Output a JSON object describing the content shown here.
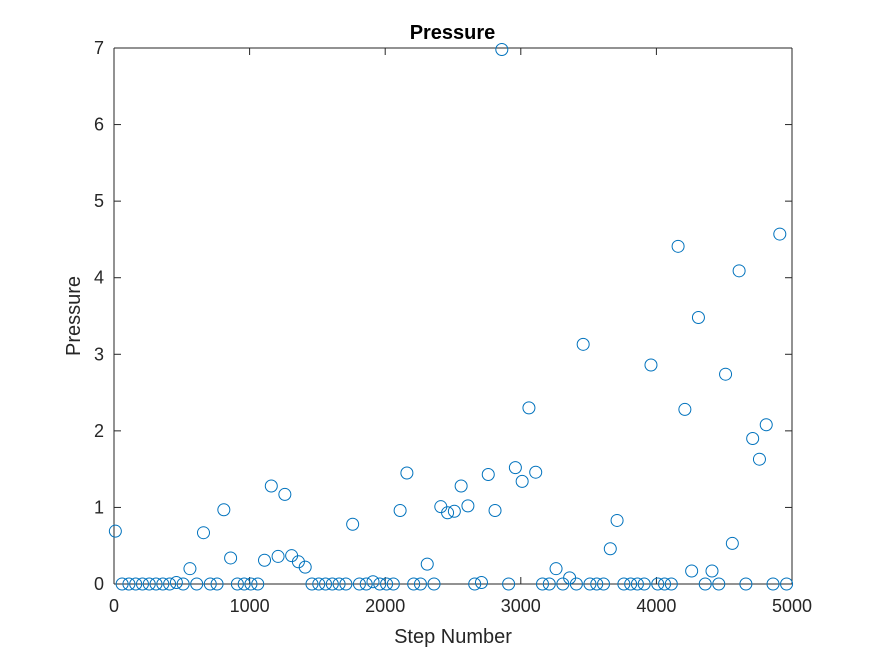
{
  "chart_data": {
    "type": "scatter",
    "title": "Pressure",
    "xlabel": "Step Number",
    "ylabel": "Pressure",
    "xlim": [
      0,
      5000
    ],
    "ylim": [
      0,
      7
    ],
    "xticks": [
      "0",
      "1000",
      "2000",
      "3000",
      "4000",
      "5000"
    ],
    "yticks": [
      "0",
      "1",
      "2",
      "3",
      "4",
      "5",
      "6",
      "7"
    ],
    "grid": false,
    "marker": "circle-open",
    "color": "#0072BD",
    "points": [
      [
        10,
        0.69
      ],
      [
        60,
        0
      ],
      [
        110,
        0
      ],
      [
        160,
        0
      ],
      [
        210,
        0
      ],
      [
        260,
        0
      ],
      [
        310,
        0
      ],
      [
        360,
        0
      ],
      [
        410,
        0
      ],
      [
        460,
        0.02
      ],
      [
        510,
        0
      ],
      [
        560,
        0.2
      ],
      [
        610,
        0
      ],
      [
        660,
        0.67
      ],
      [
        710,
        0
      ],
      [
        760,
        0
      ],
      [
        810,
        0.97
      ],
      [
        860,
        0.34
      ],
      [
        910,
        0
      ],
      [
        960,
        0
      ],
      [
        1010,
        0
      ],
      [
        1060,
        0
      ],
      [
        1110,
        0.31
      ],
      [
        1160,
        1.28
      ],
      [
        1210,
        0.36
      ],
      [
        1260,
        1.17
      ],
      [
        1310,
        0.37
      ],
      [
        1360,
        0.29
      ],
      [
        1410,
        0.22
      ],
      [
        1460,
        0
      ],
      [
        1510,
        0
      ],
      [
        1560,
        0
      ],
      [
        1610,
        0
      ],
      [
        1660,
        0
      ],
      [
        1710,
        0
      ],
      [
        1760,
        0.78
      ],
      [
        1810,
        0
      ],
      [
        1860,
        0
      ],
      [
        1910,
        0.03
      ],
      [
        1960,
        0
      ],
      [
        2010,
        0
      ],
      [
        2060,
        0
      ],
      [
        2110,
        0.96
      ],
      [
        2160,
        1.45
      ],
      [
        2210,
        0
      ],
      [
        2260,
        0
      ],
      [
        2310,
        0.26
      ],
      [
        2360,
        0
      ],
      [
        2410,
        1.01
      ],
      [
        2460,
        0.93
      ],
      [
        2510,
        0.95
      ],
      [
        2560,
        1.28
      ],
      [
        2610,
        1.02
      ],
      [
        2660,
        0
      ],
      [
        2710,
        0.02
      ],
      [
        2760,
        1.43
      ],
      [
        2810,
        0.96
      ],
      [
        2860,
        6.98
      ],
      [
        2910,
        0
      ],
      [
        2960,
        1.52
      ],
      [
        3010,
        1.34
      ],
      [
        3060,
        2.3
      ],
      [
        3110,
        1.46
      ],
      [
        3160,
        0
      ],
      [
        3210,
        0
      ],
      [
        3260,
        0.2
      ],
      [
        3310,
        0
      ],
      [
        3360,
        0.08
      ],
      [
        3410,
        0
      ],
      [
        3460,
        3.13
      ],
      [
        3510,
        0
      ],
      [
        3560,
        0
      ],
      [
        3610,
        0
      ],
      [
        3660,
        0.46
      ],
      [
        3710,
        0.83
      ],
      [
        3760,
        0
      ],
      [
        3810,
        0
      ],
      [
        3860,
        0
      ],
      [
        3910,
        0
      ],
      [
        3960,
        2.86
      ],
      [
        4010,
        0
      ],
      [
        4060,
        0
      ],
      [
        4110,
        0
      ],
      [
        4160,
        4.41
      ],
      [
        4210,
        2.28
      ],
      [
        4260,
        0.17
      ],
      [
        4310,
        3.48
      ],
      [
        4360,
        0
      ],
      [
        4410,
        0.17
      ],
      [
        4460,
        0
      ],
      [
        4510,
        2.74
      ],
      [
        4560,
        0.53
      ],
      [
        4610,
        4.09
      ],
      [
        4660,
        0
      ],
      [
        4710,
        1.9
      ],
      [
        4760,
        1.63
      ],
      [
        4810,
        2.08
      ],
      [
        4860,
        0
      ],
      [
        4910,
        4.57
      ],
      [
        4960,
        0
      ]
    ]
  }
}
